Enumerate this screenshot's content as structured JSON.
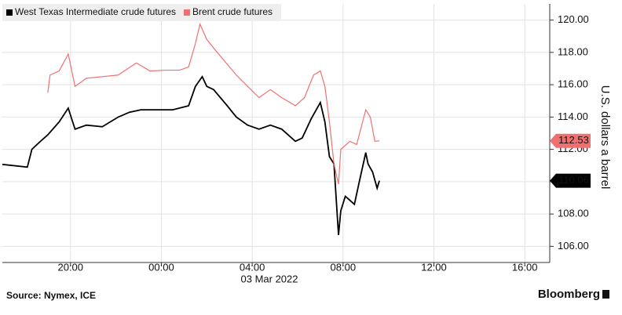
{
  "chart_data": {
    "type": "line",
    "ylabel": "U.S. dollars a barrel",
    "date_label": "03 Mar 2022",
    "source": "Source: Nymex, ICE",
    "brand": "Bloomberg",
    "xlim": [
      17,
      41.1
    ],
    "xticks": [
      {
        "value": 20,
        "label": "20:00"
      },
      {
        "value": 24,
        "label": "00:00"
      },
      {
        "value": 28,
        "label": "04:00"
      },
      {
        "value": 32,
        "label": "08:00"
      },
      {
        "value": 36,
        "label": "12:00"
      },
      {
        "value": 40,
        "label": "16:00"
      }
    ],
    "ylim": [
      105,
      121
    ],
    "yticks": [
      {
        "value": 106,
        "label": "106.00"
      },
      {
        "value": 108,
        "label": "108.00"
      },
      {
        "value": 110,
        "label": "110.00"
      },
      {
        "value": 112,
        "label": "112.00"
      },
      {
        "value": 114,
        "label": "114.00"
      },
      {
        "value": 116,
        "label": "116.00"
      },
      {
        "value": 118,
        "label": "118.00"
      },
      {
        "value": 120,
        "label": "120.00"
      }
    ],
    "grid": true,
    "legend": "top-left",
    "series": [
      {
        "name": "West Texas Intermediate crude futures",
        "color": "#000000",
        "x": [
          17.0,
          18.1,
          18.3,
          18.6,
          19.0,
          19.5,
          19.9,
          20.2,
          20.7,
          21.4,
          22.1,
          22.6,
          23.1,
          23.6,
          24.5,
          25.2,
          25.5,
          25.8,
          26.0,
          26.3,
          26.6,
          26.9,
          27.3,
          27.8,
          28.3,
          28.8,
          29.3,
          29.9,
          30.2,
          30.6,
          31.0,
          31.2,
          31.4,
          31.6,
          31.8,
          31.9,
          32.1,
          32.5,
          32.7,
          33.0,
          33.1,
          33.3,
          33.5,
          33.6
        ],
        "values": [
          111.07,
          110.9,
          112.0,
          112.4,
          112.9,
          113.7,
          114.55,
          113.25,
          113.5,
          113.4,
          114.0,
          114.3,
          114.45,
          114.45,
          114.45,
          114.7,
          115.9,
          116.5,
          115.9,
          115.7,
          115.2,
          114.7,
          114.0,
          113.5,
          113.25,
          113.5,
          113.25,
          112.5,
          112.7,
          113.9,
          114.9,
          113.7,
          111.55,
          111.1,
          106.7,
          108.2,
          109.1,
          108.6,
          109.9,
          111.8,
          111.1,
          110.6,
          109.6,
          110.06
        ]
      },
      {
        "name": "Brent crude futures",
        "color": "#f07070",
        "x": [
          19.0,
          19.1,
          19.5,
          19.9,
          20.2,
          20.7,
          21.4,
          22.1,
          22.9,
          23.5,
          24.2,
          24.8,
          25.2,
          25.5,
          25.7,
          26.0,
          26.4,
          26.7,
          27.3,
          27.8,
          28.3,
          28.8,
          29.3,
          29.9,
          30.3,
          30.7,
          31.0,
          31.2,
          31.4,
          31.6,
          31.8,
          31.9,
          32.3,
          32.6,
          33.0,
          33.2,
          33.4,
          33.6
        ],
        "values": [
          115.5,
          116.6,
          116.85,
          117.9,
          115.9,
          116.4,
          116.5,
          116.6,
          117.35,
          116.85,
          116.9,
          116.9,
          117.1,
          118.55,
          119.75,
          118.8,
          118.1,
          117.6,
          116.6,
          115.9,
          115.2,
          115.7,
          115.2,
          114.7,
          115.2,
          116.6,
          116.85,
          115.9,
          113.7,
          111.1,
          109.85,
          112.0,
          112.5,
          112.3,
          114.45,
          114.0,
          112.5,
          112.53
        ]
      }
    ]
  }
}
